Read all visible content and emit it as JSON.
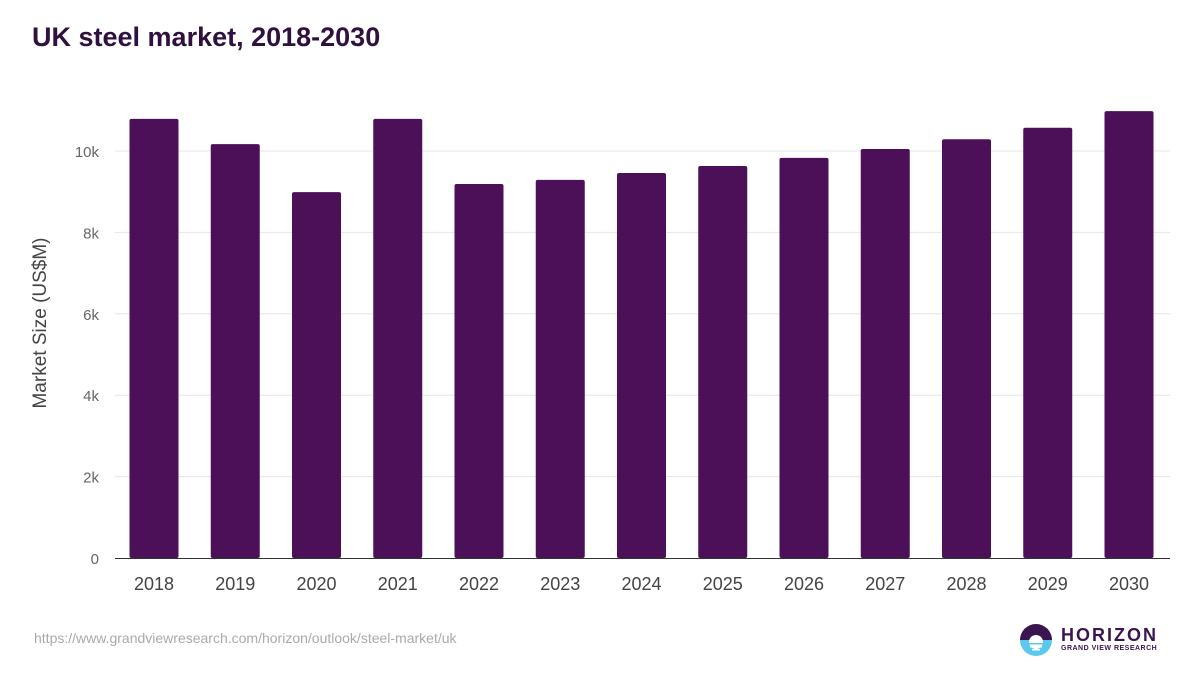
{
  "chart_data": {
    "type": "bar",
    "title": "UK steel market, 2018-2030",
    "xlabel": "",
    "ylabel": "Market Size (US$M)",
    "categories": [
      "2018",
      "2019",
      "2020",
      "2021",
      "2022",
      "2023",
      "2024",
      "2025",
      "2026",
      "2027",
      "2028",
      "2029",
      "2030"
    ],
    "values": [
      10790,
      10170,
      8990,
      10790,
      9190,
      9290,
      9460,
      9630,
      9830,
      10050,
      10290,
      10570,
      10980
    ],
    "ylim": [
      0,
      11000
    ],
    "yticks": [
      0,
      2000,
      4000,
      6000,
      8000,
      10000
    ],
    "ytick_labels": [
      "0",
      "2k",
      "4k",
      "6k",
      "8k",
      "10k"
    ],
    "grid": true,
    "bar_color": "#4b1058"
  },
  "source": "https://www.grandviewresearch.com/horizon/outlook/steel-market/uk",
  "logo": {
    "name": "HORIZON",
    "sub": "GRAND VIEW RESEARCH"
  }
}
